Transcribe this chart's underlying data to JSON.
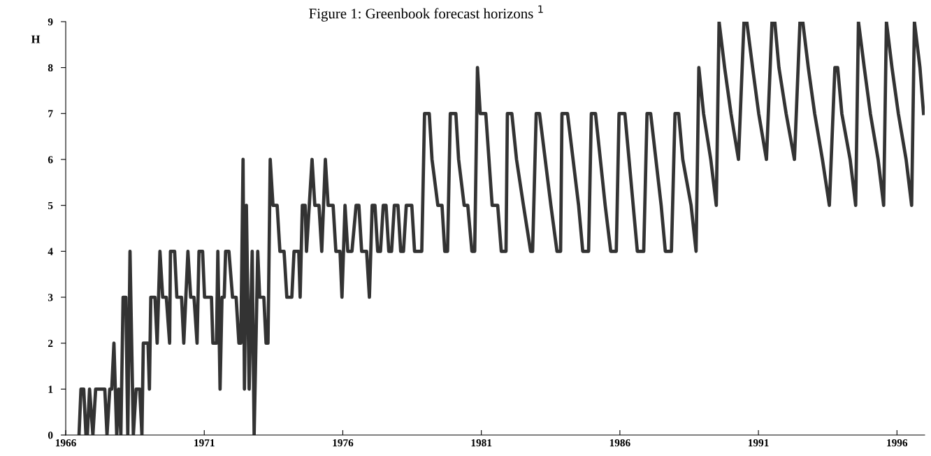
{
  "chart_data": {
    "type": "line",
    "title": "Figure 1: Greenbook forecast horizons $^{1}$",
    "ylabel": "H",
    "xlim": [
      1966,
      1997
    ],
    "xticks": [
      1966,
      1971,
      1976,
      1981,
      1986,
      1991,
      1996
    ],
    "ylim": [
      0,
      9
    ],
    "yticks": [
      0,
      1,
      2,
      3,
      4,
      5,
      6,
      7,
      8,
      9
    ],
    "grid": false,
    "legend": false,
    "marker": "none",
    "line_style": "solid",
    "series": [
      {
        "color": "#333333",
        "x": [
          1966.48,
          1966.55,
          1966.65,
          1966.73,
          1966.78,
          1966.86,
          1966.98,
          1967.08,
          1967.41,
          1967.49,
          1967.59,
          1967.66,
          1967.74,
          1967.84,
          1967.91,
          1967.99,
          1968.07,
          1968.17,
          1968.24,
          1968.32,
          1968.44,
          1968.54,
          1968.67,
          1968.75,
          1968.8,
          1968.97,
          1969.02,
          1969.07,
          1969.22,
          1969.3,
          1969.4,
          1969.5,
          1969.63,
          1969.75,
          1969.78,
          1969.93,
          1970.01,
          1970.18,
          1970.26,
          1970.41,
          1970.51,
          1970.63,
          1970.74,
          1970.81,
          1970.94,
          1971.01,
          1971.26,
          1971.31,
          1971.44,
          1971.49,
          1971.57,
          1971.64,
          1971.72,
          1971.77,
          1971.89,
          1972.02,
          1972.15,
          1972.25,
          1972.32,
          1972.4,
          1972.45,
          1972.52,
          1972.62,
          1972.73,
          1972.8,
          1972.93,
          1973.0,
          1973.15,
          1973.23,
          1973.3,
          1973.38,
          1973.48,
          1973.63,
          1973.73,
          1973.88,
          1973.98,
          1974.16,
          1974.24,
          1974.41,
          1974.46,
          1974.54,
          1974.64,
          1974.69,
          1974.89,
          1974.99,
          1975.14,
          1975.24,
          1975.37,
          1975.47,
          1975.65,
          1975.75,
          1975.9,
          1975.97,
          1976.08,
          1976.18,
          1976.33,
          1976.48,
          1976.58,
          1976.68,
          1976.86,
          1976.96,
          1977.06,
          1977.16,
          1977.26,
          1977.36,
          1977.46,
          1977.56,
          1977.66,
          1977.76,
          1977.86,
          1977.99,
          1978.09,
          1978.19,
          1978.29,
          1978.49,
          1978.59,
          1978.85,
          1978.95,
          1979.12,
          1979.22,
          1979.43,
          1979.58,
          1979.68,
          1979.78,
          1979.88,
          1980.08,
          1980.18,
          1980.38,
          1980.51,
          1980.66,
          1980.76,
          1980.86,
          1980.96,
          1981.16,
          1981.39,
          1981.59,
          1981.72,
          1981.89,
          1981.94,
          1982.1,
          1982.27,
          1982.52,
          1982.78,
          1982.85,
          1982.98,
          1983.1,
          1983.51,
          1983.73,
          1983.86,
          1983.91,
          1984.11,
          1984.51,
          1984.66,
          1984.87,
          1984.97,
          1985.12,
          1985.47,
          1985.67,
          1985.87,
          1985.97,
          1986.18,
          1986.48,
          1986.63,
          1986.86,
          1986.98,
          1987.11,
          1987.49,
          1987.64,
          1987.86,
          1987.99,
          1988.12,
          1988.27,
          1988.57,
          1988.75,
          1988.85,
          1989.02,
          1989.28,
          1989.48,
          1989.58,
          1989.78,
          1990.01,
          1990.28,
          1990.48,
          1990.58,
          1990.79,
          1991.01,
          1991.29,
          1991.49,
          1991.59,
          1991.74,
          1992.0,
          1992.3,
          1992.5,
          1992.6,
          1992.8,
          1993.03,
          1993.31,
          1993.56,
          1993.76,
          1993.86,
          1994.01,
          1994.31,
          1994.51,
          1994.61,
          1994.82,
          1995.04,
          1995.32,
          1995.52,
          1995.62,
          1995.82,
          1996.05,
          1996.33,
          1996.53,
          1996.63,
          1996.83,
          1996.96
        ],
        "values": [
          0,
          1,
          1,
          0,
          0,
          1,
          0,
          1,
          1,
          0,
          1,
          1,
          2,
          0,
          1,
          0,
          3,
          3,
          0,
          4,
          0,
          1,
          1,
          0,
          2,
          2,
          1,
          3,
          3,
          2,
          4,
          3,
          3,
          2,
          4,
          4,
          3,
          3,
          2,
          4,
          3,
          3,
          2,
          4,
          4,
          3,
          3,
          2,
          2,
          4,
          1,
          3,
          3,
          4,
          4,
          3,
          3,
          2,
          2,
          6,
          1,
          5,
          1,
          4,
          0,
          4,
          3,
          3,
          2,
          2,
          6,
          5,
          5,
          4,
          4,
          3,
          3,
          4,
          4,
          3,
          5,
          5,
          4,
          6,
          5,
          5,
          4,
          6,
          5,
          5,
          4,
          4,
          3,
          5,
          4,
          4,
          5,
          5,
          4,
          4,
          3,
          5,
          5,
          4,
          4,
          5,
          5,
          4,
          4,
          5,
          5,
          4,
          4,
          5,
          5,
          4,
          4,
          7,
          7,
          6,
          5,
          5,
          4,
          4,
          7,
          7,
          6,
          5,
          5,
          4,
          4,
          8,
          7,
          7,
          5,
          5,
          4,
          4,
          7,
          7,
          6,
          5,
          4,
          4,
          7,
          7,
          5,
          4,
          4,
          7,
          7,
          5,
          4,
          4,
          7,
          7,
          5,
          4,
          4,
          7,
          7,
          5,
          4,
          4,
          7,
          7,
          5,
          4,
          4,
          7,
          7,
          6,
          5,
          4,
          8,
          7,
          6,
          5,
          9,
          8,
          7,
          6,
          9,
          9,
          8,
          7,
          6,
          9,
          9,
          8,
          7,
          6,
          9,
          9,
          8,
          7,
          6,
          5,
          8,
          8,
          7,
          6,
          5,
          9,
          8,
          7,
          6,
          5,
          9,
          8,
          7,
          6,
          5,
          9,
          8,
          7
        ]
      }
    ]
  }
}
